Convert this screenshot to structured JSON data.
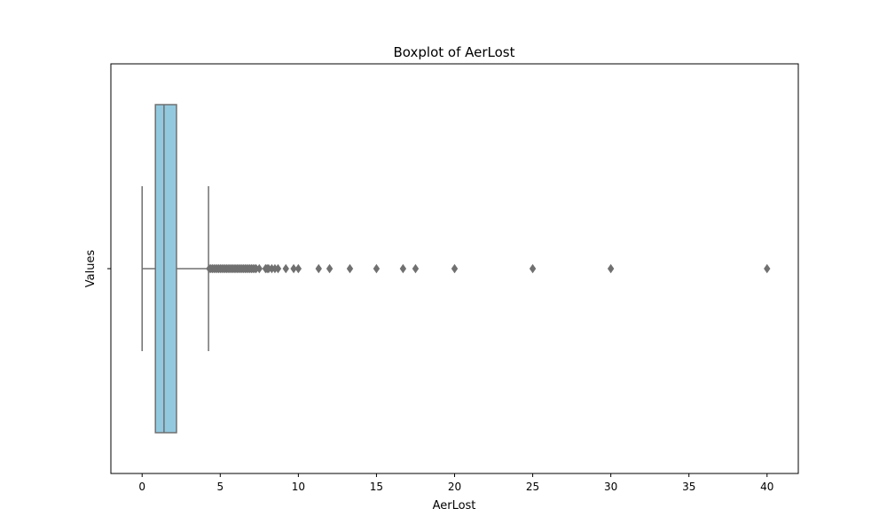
{
  "chart_data": {
    "type": "boxplot",
    "title": "Boxplot of AerLost",
    "xlabel": "AerLost",
    "ylabel": "Values",
    "xlim": [
      -2,
      42
    ],
    "xticks": [
      0,
      5,
      10,
      15,
      20,
      25,
      30,
      35,
      40
    ],
    "orientation": "horizontal",
    "grid": false,
    "box": {
      "whisker_low": 0,
      "q1": 0.85,
      "median": 1.4,
      "q3": 2.2,
      "whisker_high": 4.25
    },
    "outliers": [
      4.3,
      4.4,
      4.5,
      4.6,
      4.7,
      4.8,
      4.9,
      5.0,
      5.1,
      5.2,
      5.3,
      5.4,
      5.5,
      5.6,
      5.7,
      5.8,
      5.9,
      6.0,
      6.1,
      6.2,
      6.3,
      6.4,
      6.5,
      6.6,
      6.7,
      6.8,
      6.9,
      7.0,
      7.1,
      7.2,
      7.3,
      7.5,
      7.9,
      8.0,
      8.1,
      8.3,
      8.5,
      8.7,
      9.2,
      9.7,
      10.0,
      11.3,
      12.0,
      13.3,
      15.0,
      16.7,
      17.5,
      20.0,
      25.0,
      30.0,
      40.0
    ],
    "colors": {
      "box_fill": "#92c9df",
      "line": "#707070",
      "outlier": "#707070"
    }
  }
}
